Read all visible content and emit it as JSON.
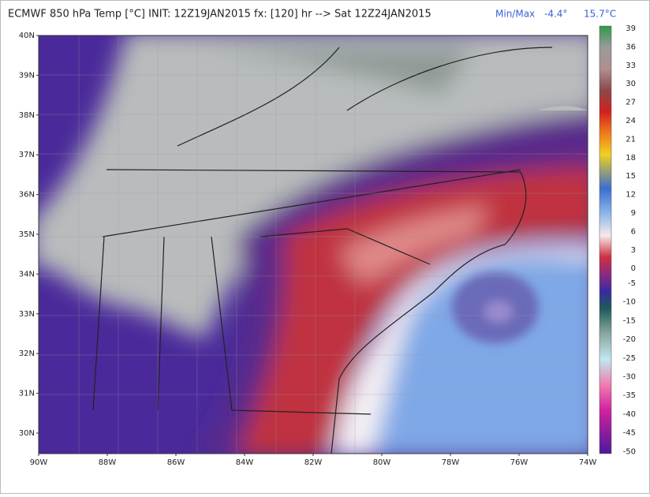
{
  "header": {
    "title": "ECMWF 850 hPa Temp [°C] INIT: 12Z19JAN2015 fx: [120] hr --> Sat 12Z24JAN2015",
    "minmax_label": "Min/Max",
    "min": "-4.4°",
    "max": "15.7°C"
  },
  "map": {
    "latitudes": [
      "40N",
      "39N",
      "38N",
      "37N",
      "36N",
      "35N",
      "34N",
      "33N",
      "32N",
      "31N",
      "30N"
    ],
    "longitudes": [
      "90W",
      "88W",
      "86W",
      "84W",
      "82W",
      "80W",
      "78W",
      "76W",
      "74W"
    ]
  },
  "colorbar": {
    "labels": [
      39,
      36,
      33,
      30,
      27,
      24,
      21,
      18,
      15,
      12,
      9,
      6,
      3,
      0,
      -5,
      -10,
      -15,
      -20,
      -25,
      -30,
      -35,
      -40,
      -45,
      -50
    ]
  }
}
